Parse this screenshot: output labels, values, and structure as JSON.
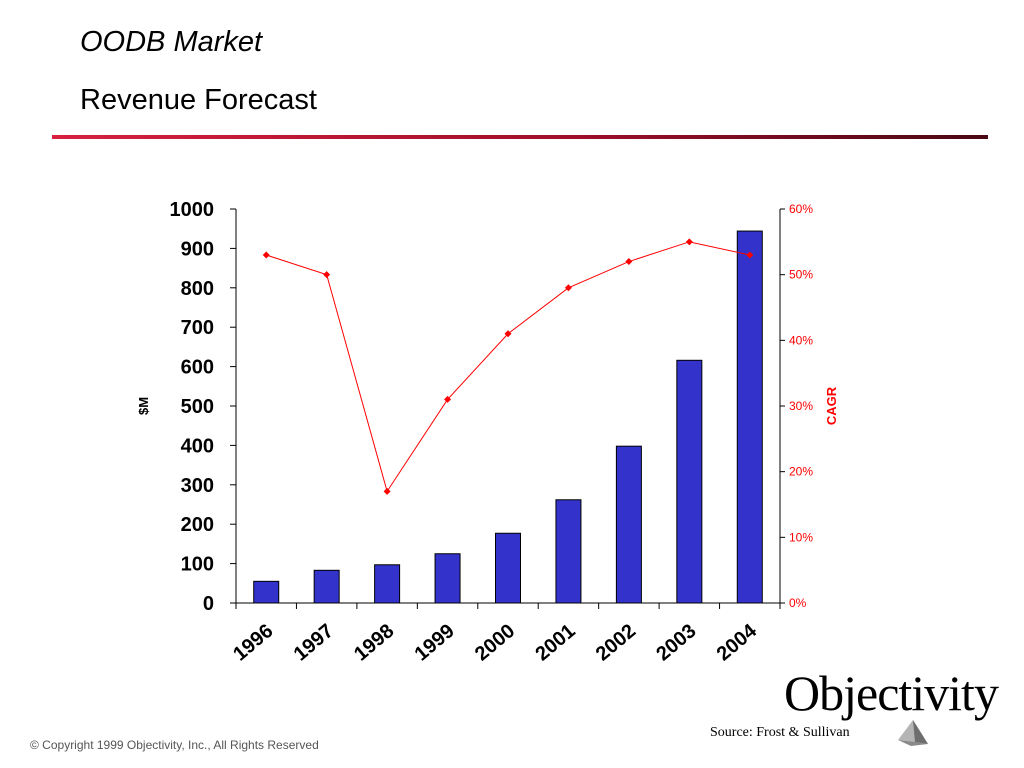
{
  "header": {
    "title": "OODB Market",
    "subtitle": "Revenue Forecast"
  },
  "chart_data": {
    "type": "bar",
    "categories": [
      "1996",
      "1997",
      "1998",
      "1999",
      "2000",
      "2001",
      "2002",
      "2003",
      "2004"
    ],
    "series": [
      {
        "type": "bar",
        "axis": "left",
        "color": "#3333cc",
        "values": [
          55,
          83,
          97,
          125,
          177,
          262,
          398,
          616,
          944
        ]
      },
      {
        "type": "line",
        "axis": "right",
        "color": "#ff0000",
        "values": [
          53,
          50,
          17,
          31,
          41,
          48,
          52,
          55,
          53
        ]
      }
    ],
    "ylabel": "$M",
    "ylim": [
      0,
      1000
    ],
    "yticks": [
      "0",
      "100",
      "200",
      "300",
      "400",
      "500",
      "600",
      "700",
      "800",
      "900",
      "1000"
    ],
    "y2label": "CAGR",
    "y2lim": [
      0,
      60
    ],
    "y2ticks": [
      "0%",
      "10%",
      "20%",
      "30%",
      "40%",
      "50%",
      "60%"
    ],
    "grid": false,
    "legend": "none"
  },
  "footer": {
    "copyright": "© Copyright 1999 Objectivity, Inc., All Rights Reserved",
    "source": "Source:  Frost & Sullivan",
    "logo": "Objectivity"
  }
}
